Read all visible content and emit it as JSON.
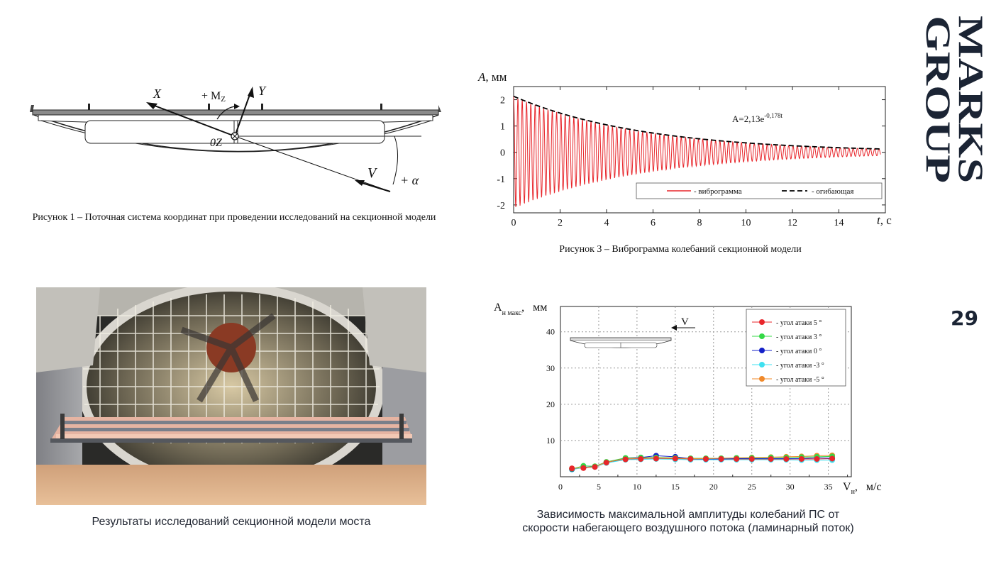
{
  "brand": {
    "logo_line1": "MARKS",
    "logo_line2": "GROUP",
    "color": "#1b2434"
  },
  "page_number": "29",
  "figure1": {
    "caption": "Рисунок 1 – Поточная система координат при проведении исследований на секционной модели",
    "labels": {
      "x": "X",
      "y": "Y",
      "mz": "+ M",
      "mz_sub": "Z",
      "origin": "0Z",
      "v": "V",
      "alpha": "+ α"
    }
  },
  "figure3": {
    "caption": "Рисунок 3 – Виброграмма колебаний секционной модели",
    "envelope_formula": "A=2,13e",
    "envelope_exp": "-0,178t",
    "ylabel": "A, мм",
    "xlabel": "t, с",
    "legend": {
      "signal": "- виброграмма",
      "envelope": "- огибающая"
    }
  },
  "photo": {
    "caption": "Результаты исследований секционной модели моста"
  },
  "figure4": {
    "caption_line1": "Зависимость максимальной амплитуды колебаний ПС от",
    "caption_line2": "скорости набегающего воздушного потока (ламинарный поток)",
    "ylabel": "A",
    "ylabel_sub": "н макс",
    "ylabel_unit": "мм",
    "xlabel": "V",
    "xlabel_sub": "н",
    "xlabel_unit": "м/с",
    "inset_v": "V"
  },
  "chart_data": [
    {
      "type": "line",
      "title": "",
      "xlabel": "t, с",
      "ylabel": "A, мм",
      "xlim": [
        0,
        16
      ],
      "ylim": [
        -2.3,
        2.5
      ],
      "x_ticks": [
        0,
        2,
        4,
        6,
        8,
        10,
        12,
        14
      ],
      "y_ticks": [
        -2,
        -1,
        0,
        1,
        2
      ],
      "series": [
        {
          "name": "- виброграмма",
          "color": "#e8262b",
          "model": "damped oscillation",
          "amplitude0": 2.13,
          "decay": 0.178,
          "period": 0.185
        },
        {
          "name": "- огибающая",
          "color": "#000000",
          "style": "dashed",
          "formula": "A=2,13e-0,178t"
        }
      ],
      "legend": "bottom-right",
      "grid": false
    },
    {
      "type": "scatter",
      "title": "",
      "xlabel": "Vн, м/с",
      "ylabel": "Aн макс, мм",
      "xlim": [
        0,
        38
      ],
      "ylim": [
        0,
        47
      ],
      "x_ticks": [
        0,
        5,
        10,
        15,
        20,
        25,
        30,
        35
      ],
      "y_ticks": [
        10,
        20,
        30,
        40
      ],
      "grid": true,
      "legend": "top-right",
      "series": [
        {
          "name": "- угол атаки 5 °",
          "color": "#e8262b",
          "x": [
            1.5,
            3,
            4.5,
            6,
            8.5,
            10.5,
            12.5,
            15,
            17,
            19,
            21,
            23,
            25,
            27.5,
            29.5,
            31.5,
            33.5,
            35.5
          ],
          "y": [
            2.3,
            2.4,
            2.7,
            3.9,
            4.8,
            4.9,
            5.0,
            5.0,
            4.9,
            4.9,
            4.9,
            4.9,
            4.9,
            4.9,
            4.9,
            4.9,
            4.9,
            5.0
          ]
        },
        {
          "name": "- угол атаки 3 °",
          "color": "#34d846",
          "x": [
            1.5,
            3,
            4.5,
            6,
            8.5,
            10.5,
            12.5,
            15,
            17,
            19,
            21,
            23,
            25,
            27.5,
            29.5,
            31.5,
            33.5,
            35.5
          ],
          "y": [
            2.2,
            3.0,
            2.9,
            4.1,
            5.2,
            5.3,
            5.3,
            5.2,
            5.1,
            5.1,
            5.1,
            5.2,
            5.2,
            5.3,
            5.3,
            5.4,
            5.5,
            5.6
          ]
        },
        {
          "name": "- угол атаки 0 °",
          "color": "#1420c8",
          "x": [
            1.5,
            3,
            4.5,
            6,
            8.5,
            10.5,
            12.5,
            15,
            17,
            19,
            21,
            23,
            25,
            27.5,
            29.5,
            31.5,
            33.5,
            35.5
          ],
          "y": [
            2.1,
            2.6,
            2.8,
            4.0,
            5.0,
            5.3,
            5.8,
            5.5,
            5.0,
            4.9,
            4.9,
            5.0,
            5.0,
            5.0,
            5.0,
            5.0,
            5.2,
            5.1
          ]
        },
        {
          "name": "- угол атаки -3 °",
          "color": "#3ee0f0",
          "x": [
            1.5,
            3,
            4.5,
            6,
            8.5,
            10.5,
            12.5,
            15,
            17,
            19,
            21,
            23,
            25,
            27.5,
            29.5,
            31.5,
            33.5,
            35.5
          ],
          "y": [
            2.0,
            2.5,
            2.7,
            3.8,
            4.7,
            4.8,
            4.9,
            4.8,
            4.7,
            4.7,
            4.7,
            4.7,
            4.7,
            4.7,
            4.7,
            4.6,
            4.6,
            4.6
          ]
        },
        {
          "name": "- угол атаки -5 °",
          "color": "#f0892a",
          "x": [
            1.5,
            3,
            4.5,
            6,
            8.5,
            10.5,
            12.5,
            15,
            17,
            19,
            21,
            23,
            25,
            27.5,
            29.5,
            31.5,
            33.5,
            35.5
          ],
          "y": [
            2.3,
            2.5,
            2.8,
            4.0,
            5.0,
            5.1,
            5.2,
            5.1,
            5.0,
            5.0,
            5.1,
            5.2,
            5.3,
            5.4,
            5.5,
            5.6,
            5.8,
            5.9
          ]
        }
      ]
    }
  ]
}
